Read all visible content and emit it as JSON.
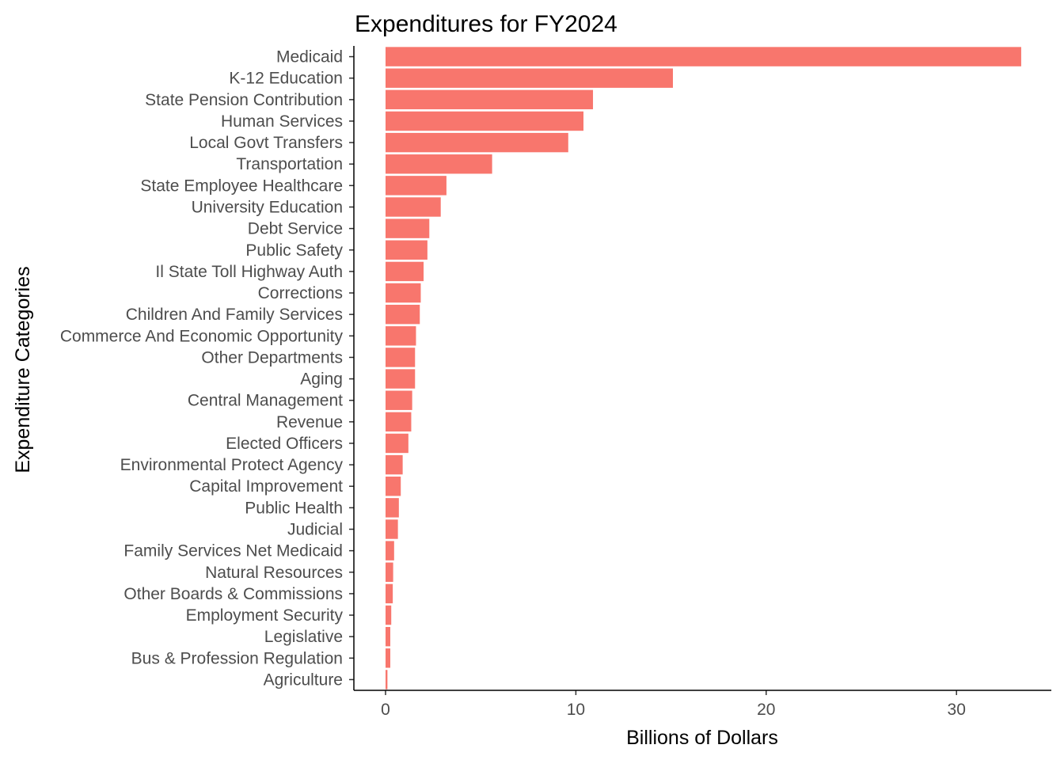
{
  "chart_data": {
    "type": "bar",
    "orientation": "horizontal",
    "title": "Expenditures for FY2024",
    "xlabel": "Billions of Dollars",
    "ylabel": "Expenditure Categories",
    "xlim": [
      0,
      35
    ],
    "xticks": [
      0,
      10,
      20,
      30
    ],
    "grid": false,
    "legend": "none",
    "bar_color": "#F8766D",
    "categories": [
      "Medicaid",
      "K-12 Education",
      "State Pension Contribution",
      "Human Services",
      "Local Govt Transfers",
      "Transportation",
      "State Employee Healthcare",
      "University Education",
      "Debt Service",
      "Public Safety",
      "Il State Toll Highway Auth",
      "Corrections",
      "Children And Family Services",
      "Commerce And Economic Opportunity",
      "Other Departments",
      "Aging",
      "Central Management",
      "Revenue",
      "Elected Officers",
      "Environmental Protect Agency",
      "Capital Improvement",
      "Public Health",
      "Judicial",
      "Family Services Net Medicaid",
      "Natural Resources",
      "Other Boards & Commissions",
      "Employment Security",
      "Legislative",
      "Bus & Profession Regulation",
      "Agriculture"
    ],
    "values": [
      33.4,
      15.1,
      10.9,
      10.4,
      9.6,
      5.6,
      3.2,
      2.9,
      2.3,
      2.2,
      2.0,
      1.85,
      1.8,
      1.6,
      1.55,
      1.55,
      1.4,
      1.35,
      1.2,
      0.9,
      0.8,
      0.7,
      0.65,
      0.45,
      0.4,
      0.38,
      0.3,
      0.25,
      0.25,
      0.1
    ]
  }
}
